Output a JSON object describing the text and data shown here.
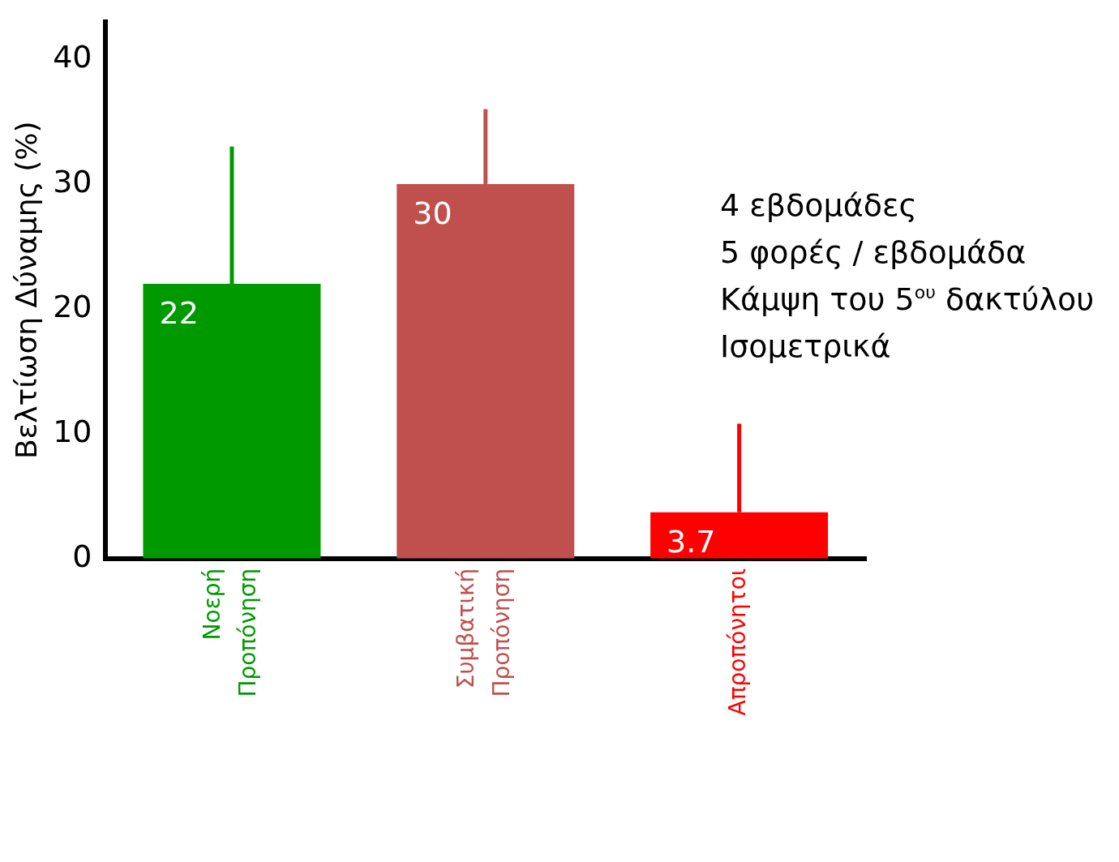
{
  "chart_data": {
    "type": "bar",
    "ylabel": "Βελτίωση Δύναμης (%)",
    "categories": [
      "Νοερή Προπόνηση",
      "Συμβατική Προπόνηση",
      "Απροπόνητοι"
    ],
    "values": [
      22,
      30,
      3.7
    ],
    "colors": [
      "#009900",
      "#c0504d",
      "#ff0000"
    ],
    "errors": [
      11,
      6,
      7.1
    ],
    "data_labels": true,
    "ylim": [
      0,
      43
    ],
    "yticks": [
      0,
      10,
      20,
      30,
      40
    ],
    "grid": false,
    "legend": false,
    "annotations": [
      "4 εβδομάδες\n5 φορές / εβδομάδα\nΚάμψη του 5$^{ου}$ δακτύλου\nΙσομετρικά"
    ]
  }
}
